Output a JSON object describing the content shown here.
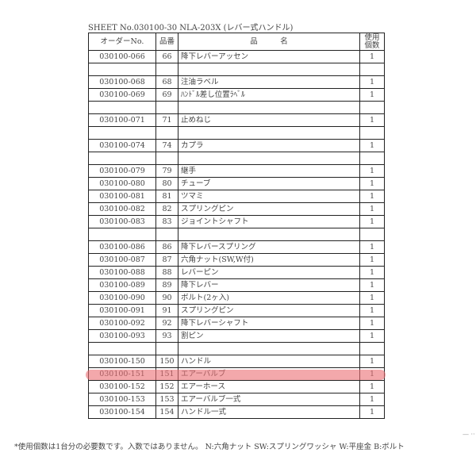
{
  "title": "SHEET No.030100-30  NLA-203X (レバー式ハンドル)",
  "headers": {
    "order": "オーダーNo.",
    "num": "品番",
    "name": "品　　　名",
    "qty": "使用個数"
  },
  "rows": [
    {
      "order": "030100-066",
      "num": "66",
      "name": "降下レバーアッセン",
      "qty": "1"
    },
    {
      "order": "",
      "num": "",
      "name": "",
      "qty": ""
    },
    {
      "order": "030100-068",
      "num": "68",
      "name": "注油ラベル",
      "qty": "1"
    },
    {
      "order": "030100-069",
      "num": "69",
      "name": "ﾊﾝﾄﾞﾙ差し位置ﾗﾍﾞﾙ",
      "qty": "1"
    },
    {
      "order": "",
      "num": "",
      "name": "",
      "qty": ""
    },
    {
      "order": "030100-071",
      "num": "71",
      "name": "止めねじ",
      "qty": "1"
    },
    {
      "order": "",
      "num": "",
      "name": "",
      "qty": ""
    },
    {
      "order": "030100-074",
      "num": "74",
      "name": "カプラ",
      "qty": "1"
    },
    {
      "order": "",
      "num": "",
      "name": "",
      "qty": ""
    },
    {
      "order": "030100-079",
      "num": "79",
      "name": "継手",
      "qty": "1"
    },
    {
      "order": "030100-080",
      "num": "80",
      "name": "チューブ",
      "qty": "1"
    },
    {
      "order": "030100-081",
      "num": "81",
      "name": "ツマミ",
      "qty": "1"
    },
    {
      "order": "030100-082",
      "num": "82",
      "name": "スプリングピン",
      "qty": "1"
    },
    {
      "order": "030100-083",
      "num": "83",
      "name": "ジョイントシャフト",
      "qty": "1"
    },
    {
      "order": "",
      "num": "",
      "name": "",
      "qty": ""
    },
    {
      "order": "030100-086",
      "num": "86",
      "name": "降下レバースプリング",
      "qty": "1"
    },
    {
      "order": "030100-087",
      "num": "87",
      "name": "六角ナット(SW,W付)",
      "qty": "1"
    },
    {
      "order": "030100-088",
      "num": "88",
      "name": "レバーピン",
      "qty": "1"
    },
    {
      "order": "030100-089",
      "num": "89",
      "name": "降下レバー",
      "qty": "1"
    },
    {
      "order": "030100-090",
      "num": "90",
      "name": "ボルト(2ヶ入)",
      "qty": "1"
    },
    {
      "order": "030100-091",
      "num": "91",
      "name": "スプリングピン",
      "qty": "1"
    },
    {
      "order": "030100-092",
      "num": "92",
      "name": "降下レバーシャフト",
      "qty": "1"
    },
    {
      "order": "030100-093",
      "num": "93",
      "name": "割ピン",
      "qty": "1"
    },
    {
      "order": "",
      "num": "",
      "name": "",
      "qty": ""
    },
    {
      "order": "030100-150",
      "num": "150",
      "name": "ハンドル",
      "qty": "1"
    },
    {
      "order": "030100-151",
      "num": "151",
      "name": "エアーバルブ",
      "qty": "1",
      "highlighted": true
    },
    {
      "order": "030100-152",
      "num": "152",
      "name": "エアーホース",
      "qty": "1"
    },
    {
      "order": "030100-153",
      "num": "153",
      "name": "エアーバルブ一式",
      "qty": "1"
    },
    {
      "order": "030100-154",
      "num": "154",
      "name": "ハンドル一式",
      "qty": "1"
    }
  ],
  "highlight_color": "#eb6e73",
  "footnote": "*使用個数は1台分の必要数です。入数ではありません。 N:六角ナット SW:スプリングワッシャ W:平座金 B:ボルト"
}
